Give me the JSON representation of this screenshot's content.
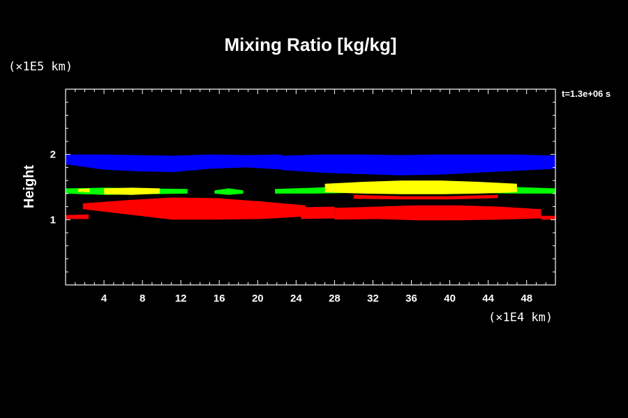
{
  "chart_data": {
    "type": "heatmap",
    "title": "Mixing Ratio [kg/kg]",
    "ylabel": "Height",
    "y_unit_label": "(×1E5 km)",
    "x_unit_label": "(×1E4 km)",
    "time_label": "t=1.3e+06 s",
    "xlim": [
      0,
      51
    ],
    "ylim": [
      0,
      3
    ],
    "x_ticks": [
      4,
      8,
      12,
      16,
      20,
      24,
      28,
      32,
      36,
      40,
      44,
      48
    ],
    "y_ticks": [
      1,
      2
    ],
    "colors": {
      "background": "#000000",
      "axes": "#ffffff",
      "blue": "#0000ff",
      "green": "#00ff00",
      "yellow": "#ffff00",
      "red": "#ff0000"
    },
    "series": [
      {
        "color": "blue",
        "segments": [
          {
            "x": [
              0,
              22.5
            ],
            "top": [
              2.0,
              2.0,
              1.99,
              1.98,
              2.0,
              1.99,
              2.0
            ],
            "bottom": [
              1.85,
              1.77,
              1.74,
              1.73,
              1.78,
              1.8,
              1.77
            ]
          },
          {
            "x": [
              22.5,
              51
            ],
            "top": [
              1.98,
              2.0,
              2.0,
              1.99,
              2.0,
              2.0,
              2.0,
              1.98
            ],
            "bottom": [
              1.76,
              1.72,
              1.7,
              1.68,
              1.69,
              1.72,
              1.75,
              1.78
            ]
          }
        ]
      },
      {
        "color": "green",
        "segments": [
          {
            "x": [
              0,
              12.7
            ],
            "top": [
              1.48,
              1.49,
              1.48,
              1.47
            ],
            "bottom": [
              1.4,
              1.38,
              1.39,
              1.4
            ]
          },
          {
            "x": [
              15.5,
              18.5
            ],
            "top": [
              1.45,
              1.48,
              1.45
            ],
            "bottom": [
              1.4,
              1.38,
              1.4
            ]
          },
          {
            "x": [
              21.8,
              51
            ],
            "top": [
              1.47,
              1.49,
              1.52,
              1.55,
              1.57,
              1.55,
              1.5,
              1.48
            ],
            "bottom": [
              1.4,
              1.4,
              1.41,
              1.42,
              1.42,
              1.41,
              1.4,
              1.4
            ]
          }
        ]
      },
      {
        "color": "yellow",
        "segments": [
          {
            "x": [
              1.3,
              2.5
            ],
            "top": [
              1.47,
              1.48
            ],
            "bottom": [
              1.43,
              1.42
            ]
          },
          {
            "x": [
              4.0,
              9.8
            ],
            "top": [
              1.48,
              1.49,
              1.48
            ],
            "bottom": [
              1.39,
              1.38,
              1.4
            ]
          },
          {
            "x": [
              27.0,
              47.0
            ],
            "top": [
              1.55,
              1.58,
              1.6,
              1.6,
              1.58,
              1.55
            ],
            "bottom": [
              1.42,
              1.4,
              1.39,
              1.39,
              1.4,
              1.42
            ]
          }
        ]
      },
      {
        "color": "red",
        "segments": [
          {
            "x": [
              0.0,
              2.4
            ],
            "top": [
              1.07,
              1.08
            ],
            "bottom": [
              1.01,
              1.01
            ]
          },
          {
            "x": [
              1.8,
              25.0
            ],
            "top": [
              1.25,
              1.3,
              1.34,
              1.33,
              1.28,
              1.22
            ],
            "bottom": [
              1.16,
              1.08,
              1.0,
              1.0,
              1.01,
              1.05
            ]
          },
          {
            "x": [
              24.5,
              28.0
            ],
            "top": [
              1.19,
              1.2
            ],
            "bottom": [
              1.01,
              1.02
            ]
          },
          {
            "x": [
              28.0,
              49.5
            ],
            "top": [
              1.18,
              1.2,
              1.22,
              1.22,
              1.2,
              1.16
            ],
            "bottom": [
              1.0,
              1.01,
              0.99,
              0.99,
              1.0,
              1.02
            ]
          },
          {
            "x": [
              30.0,
              45.0
            ],
            "top": [
              1.38,
              1.36,
              1.36,
              1.38
            ],
            "bottom": [
              1.32,
              1.31,
              1.31,
              1.33
            ]
          },
          {
            "x": [
              49.5,
              51.0
            ],
            "top": [
              1.06,
              1.06
            ],
            "bottom": [
              1.0,
              1.0
            ]
          }
        ]
      }
    ]
  }
}
